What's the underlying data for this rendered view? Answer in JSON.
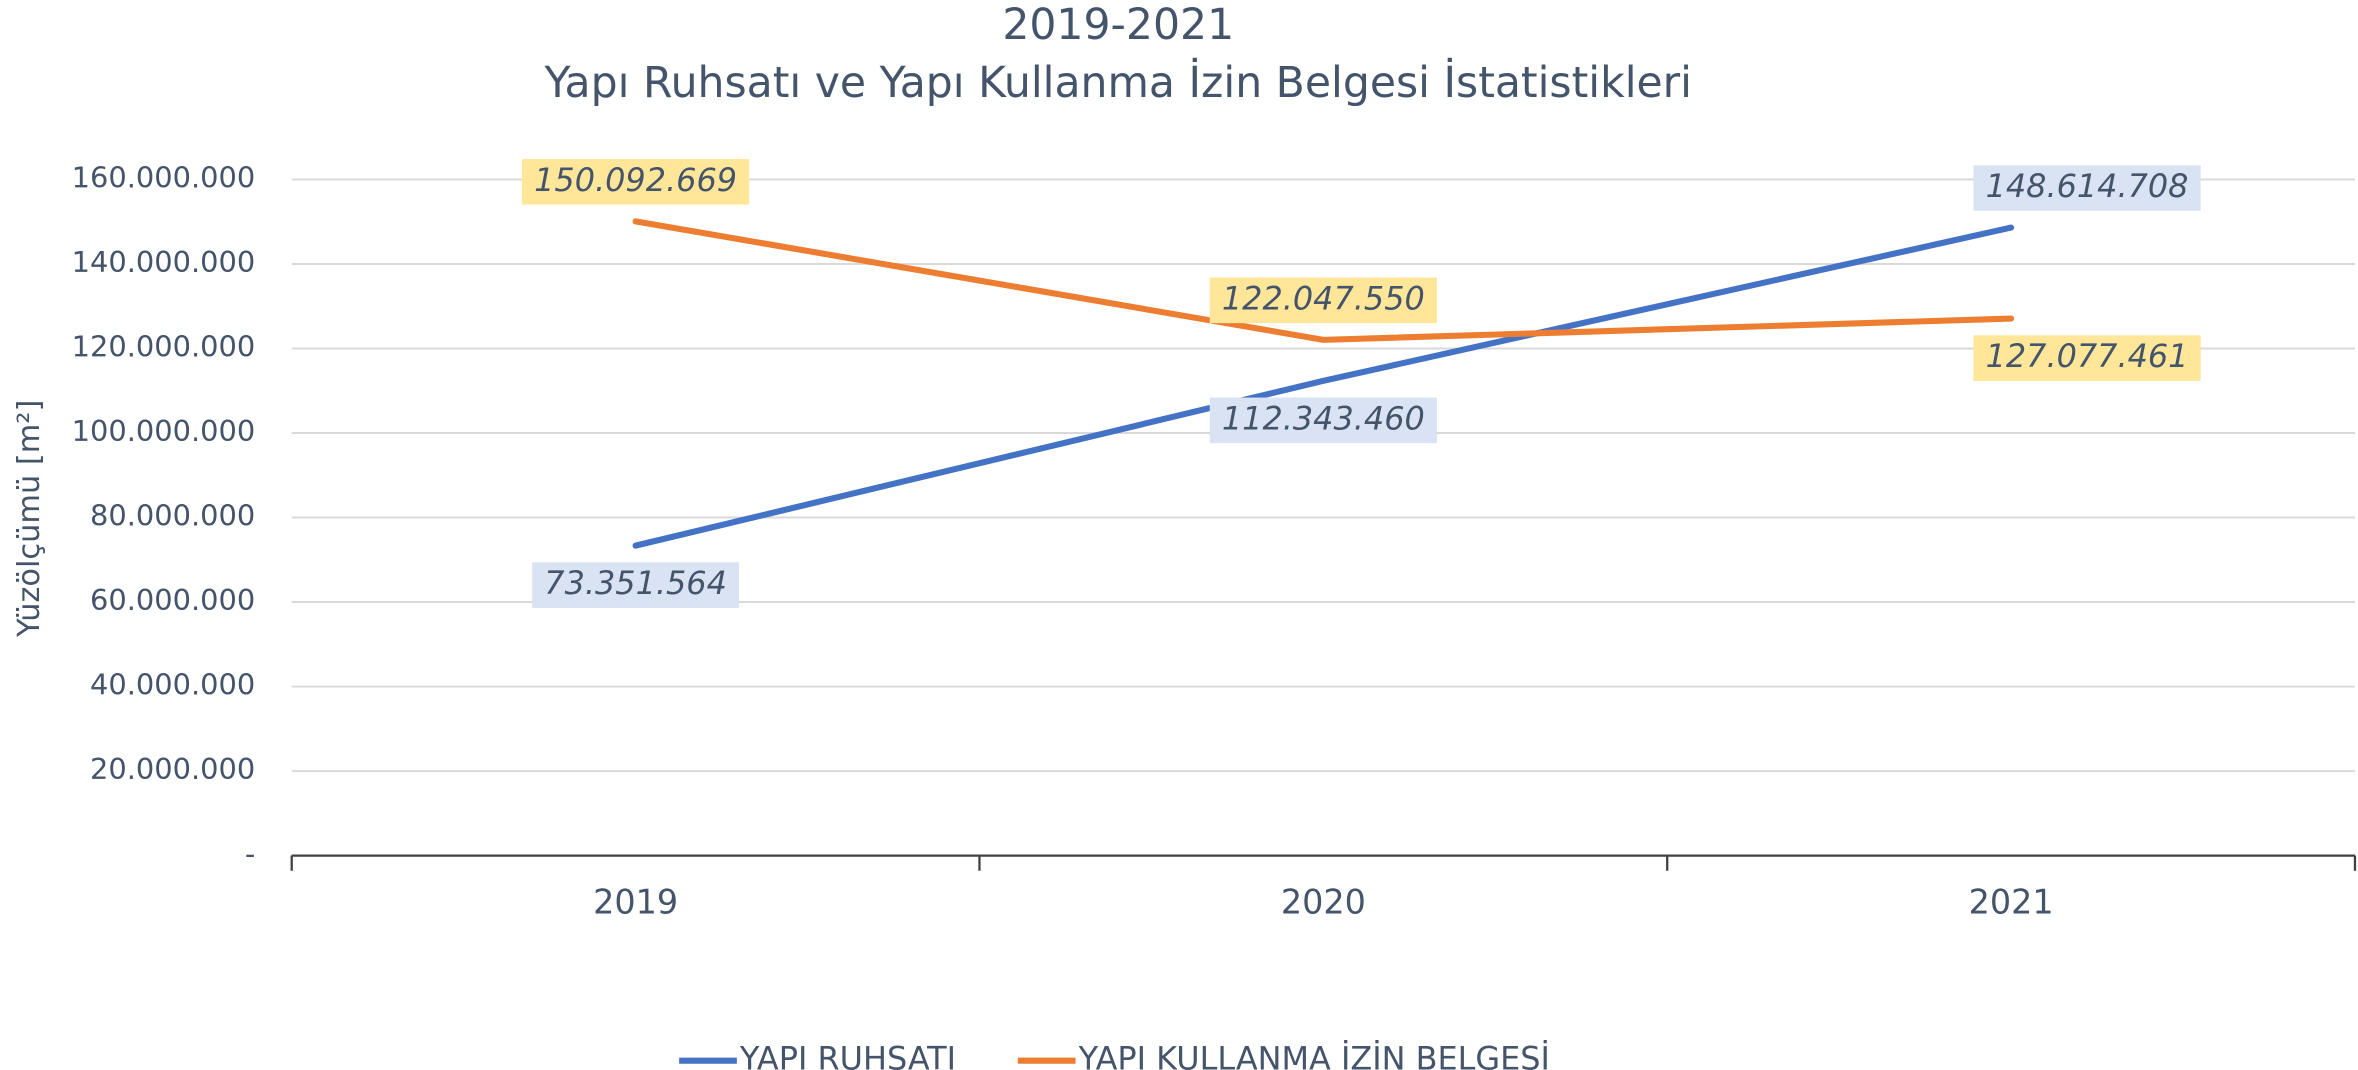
{
  "chart_data": {
    "type": "line",
    "title": "2019-2021",
    "subtitle": "Yapı Ruhsatı ve Yapı Kullanma İzin Belgesi İstatistikleri",
    "y_label": "Yüzölçümü [m²]",
    "categories": [
      "2019",
      "2020",
      "2021"
    ],
    "series": [
      {
        "name": "YAPI RUHSATI",
        "color": "#4472c4",
        "label_bg": "#dae3f3",
        "values": [
          73351564,
          112343460,
          148614708
        ],
        "value_labels": [
          "73.351.564",
          "112.343.460",
          "148.614.708"
        ]
      },
      {
        "name": "YAPI KULLANMA İZİN BELGESİ",
        "color": "#ed7d31",
        "label_bg": "#ffe699",
        "values": [
          150092669,
          122047550,
          127077461
        ],
        "value_labels": [
          "150.092.669",
          "122.047.550",
          "127.077.461"
        ]
      }
    ],
    "ylim": [
      0,
      160000000
    ],
    "yticks": [
      {
        "value": 0,
        "label": "-"
      },
      {
        "value": 20000000,
        "label": "20.000.000"
      },
      {
        "value": 40000000,
        "label": "40.000.000"
      },
      {
        "value": 60000000,
        "label": "60.000.000"
      },
      {
        "value": 80000000,
        "label": "80.000.000"
      },
      {
        "value": 100000000,
        "label": "100.000.000"
      },
      {
        "value": 120000000,
        "label": "120.000.000"
      },
      {
        "value": 140000000,
        "label": "140.000.000"
      },
      {
        "value": 160000000,
        "label": "160.000.000"
      }
    ],
    "grid": true,
    "legend": "bottom"
  }
}
